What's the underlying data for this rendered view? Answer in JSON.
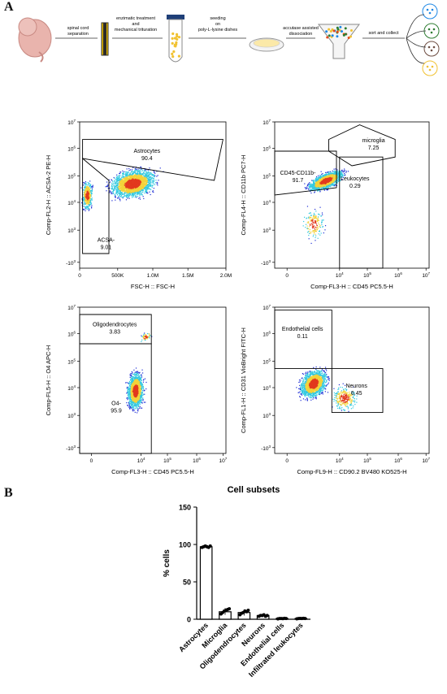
{
  "panel_a": {
    "letter": "A",
    "workflow_steps": [
      "spinal cord\nseparation",
      "enzimatic treatment\nand\nmechanical trituration",
      "seeding\non\npoly-L-lysine dishes",
      "accutase assisted\ndissociation",
      "sort and collect"
    ]
  },
  "panel_b": {
    "letter": "B"
  },
  "facs": [
    {
      "xlabel": "FSC-H :: FSC-H",
      "ylabel": "Comp-FL2-H :: ACSA-2 PE-H",
      "xticks": [
        "0",
        "500K",
        "1.0M",
        "1.5M",
        "2.0M"
      ],
      "yticks": [
        "-10^3",
        "10^3",
        "10^4",
        "10^5",
        "10^6",
        "10^7"
      ],
      "gates": [
        {
          "label": "Astrocytes",
          "value": "90.4"
        },
        {
          "label": "ACSA-",
          "value": "9.01"
        }
      ]
    },
    {
      "xlabel": "Comp-FL3-H :: CD45  PC5.5-H",
      "ylabel": "Comp-FL4-H :: CD11b PC7-H",
      "xticks": [
        "0",
        "10^4",
        "10^5",
        "10^6",
        "10^7"
      ],
      "yticks": [
        "-10^3",
        "10^3",
        "10^4",
        "10^5",
        "10^6",
        "10^7"
      ],
      "gates": [
        {
          "label": "microglia",
          "value": "7.25"
        },
        {
          "label": "CD45-CD11b-",
          "value": "91.7"
        },
        {
          "label": "Leukocytes",
          "value": "0.29"
        }
      ]
    },
    {
      "xlabel": "Comp-FL3-H :: CD45  PC5.5-H",
      "ylabel": "Comp-FL5-H :: O4 APC-H",
      "xticks": [
        "0",
        "10^4",
        "10^5",
        "10^6",
        "10^7"
      ],
      "yticks": [
        "-10^3",
        "10^3",
        "10^4",
        "10^5",
        "10^6",
        "10^7"
      ],
      "gates": [
        {
          "label": "Oligodendrocytes",
          "value": "3.83"
        },
        {
          "label": "O4-",
          "value": "95.9"
        }
      ]
    },
    {
      "xlabel": "Comp-FL9-H :: CD90.2 BV480 KO525-H",
      "ylabel": "Comp-FL1-H :: CD31 VioBright FITC-H",
      "xticks": [
        "0",
        "10^4",
        "10^5",
        "10^6",
        "10^7"
      ],
      "yticks": [
        "-10^3",
        "10^3",
        "10^4",
        "10^5",
        "10^6",
        "10^7"
      ],
      "gates": [
        {
          "label": "Endothelial cells",
          "value": "0.11"
        },
        {
          "label": "Neurons",
          "value": "6.45"
        }
      ]
    }
  ],
  "chart_data": {
    "type": "bar",
    "title": "Cell subsets",
    "xlabel": "",
    "ylabel": "% cells",
    "ylim": [
      0,
      150
    ],
    "yticks": [
      0,
      50,
      100,
      150
    ],
    "categories": [
      "Astrocytes",
      "Microglia",
      "Oligodendrocytes",
      "Neurons",
      "Endothelial cells",
      "Infiltrated leukocytes"
    ],
    "values": [
      97,
      10,
      9,
      5,
      1,
      1
    ],
    "points": [
      [
        96,
        97,
        98,
        97,
        96,
        98
      ],
      [
        7,
        9,
        11,
        12,
        13,
        14
      ],
      [
        6,
        8,
        9,
        11,
        10,
        12
      ],
      [
        4,
        5,
        5,
        6,
        4,
        5
      ],
      [
        0.5,
        1,
        1,
        0.8,
        1.2,
        1
      ],
      [
        0.6,
        1,
        1.1,
        0.9,
        1.2,
        1
      ]
    ],
    "bar_fill": "#ffffff",
    "bar_stroke": "#000000"
  },
  "colors": {
    "density_low": "#1f2fd6",
    "density_mid": "#33c9e0",
    "density_high": "#e23a1e",
    "embryo": "#e9b4ad",
    "tube_cells": "#f1c232"
  }
}
